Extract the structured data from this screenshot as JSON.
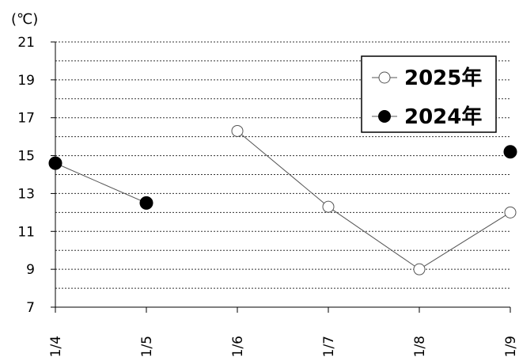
{
  "chart_data": {
    "type": "line",
    "unit_label": "(℃)",
    "categories": [
      "1/4",
      "1/5",
      "1/6",
      "1/7",
      "1/8",
      "1/9"
    ],
    "ylim": [
      7,
      21
    ],
    "yticks": [
      7,
      9,
      11,
      13,
      15,
      17,
      19,
      21
    ],
    "grid": "horizontal dotted, every 1 unit",
    "legend_position": "top-right",
    "series": [
      {
        "name": "2025年",
        "marker": "open-circle",
        "color": "#000000",
        "values": [
          null,
          null,
          16.3,
          12.3,
          9.0,
          12.0
        ]
      },
      {
        "name": "2024年",
        "marker": "filled-circle",
        "color": "#000000",
        "values": [
          14.6,
          12.5,
          null,
          null,
          null,
          15.2
        ]
      }
    ]
  }
}
